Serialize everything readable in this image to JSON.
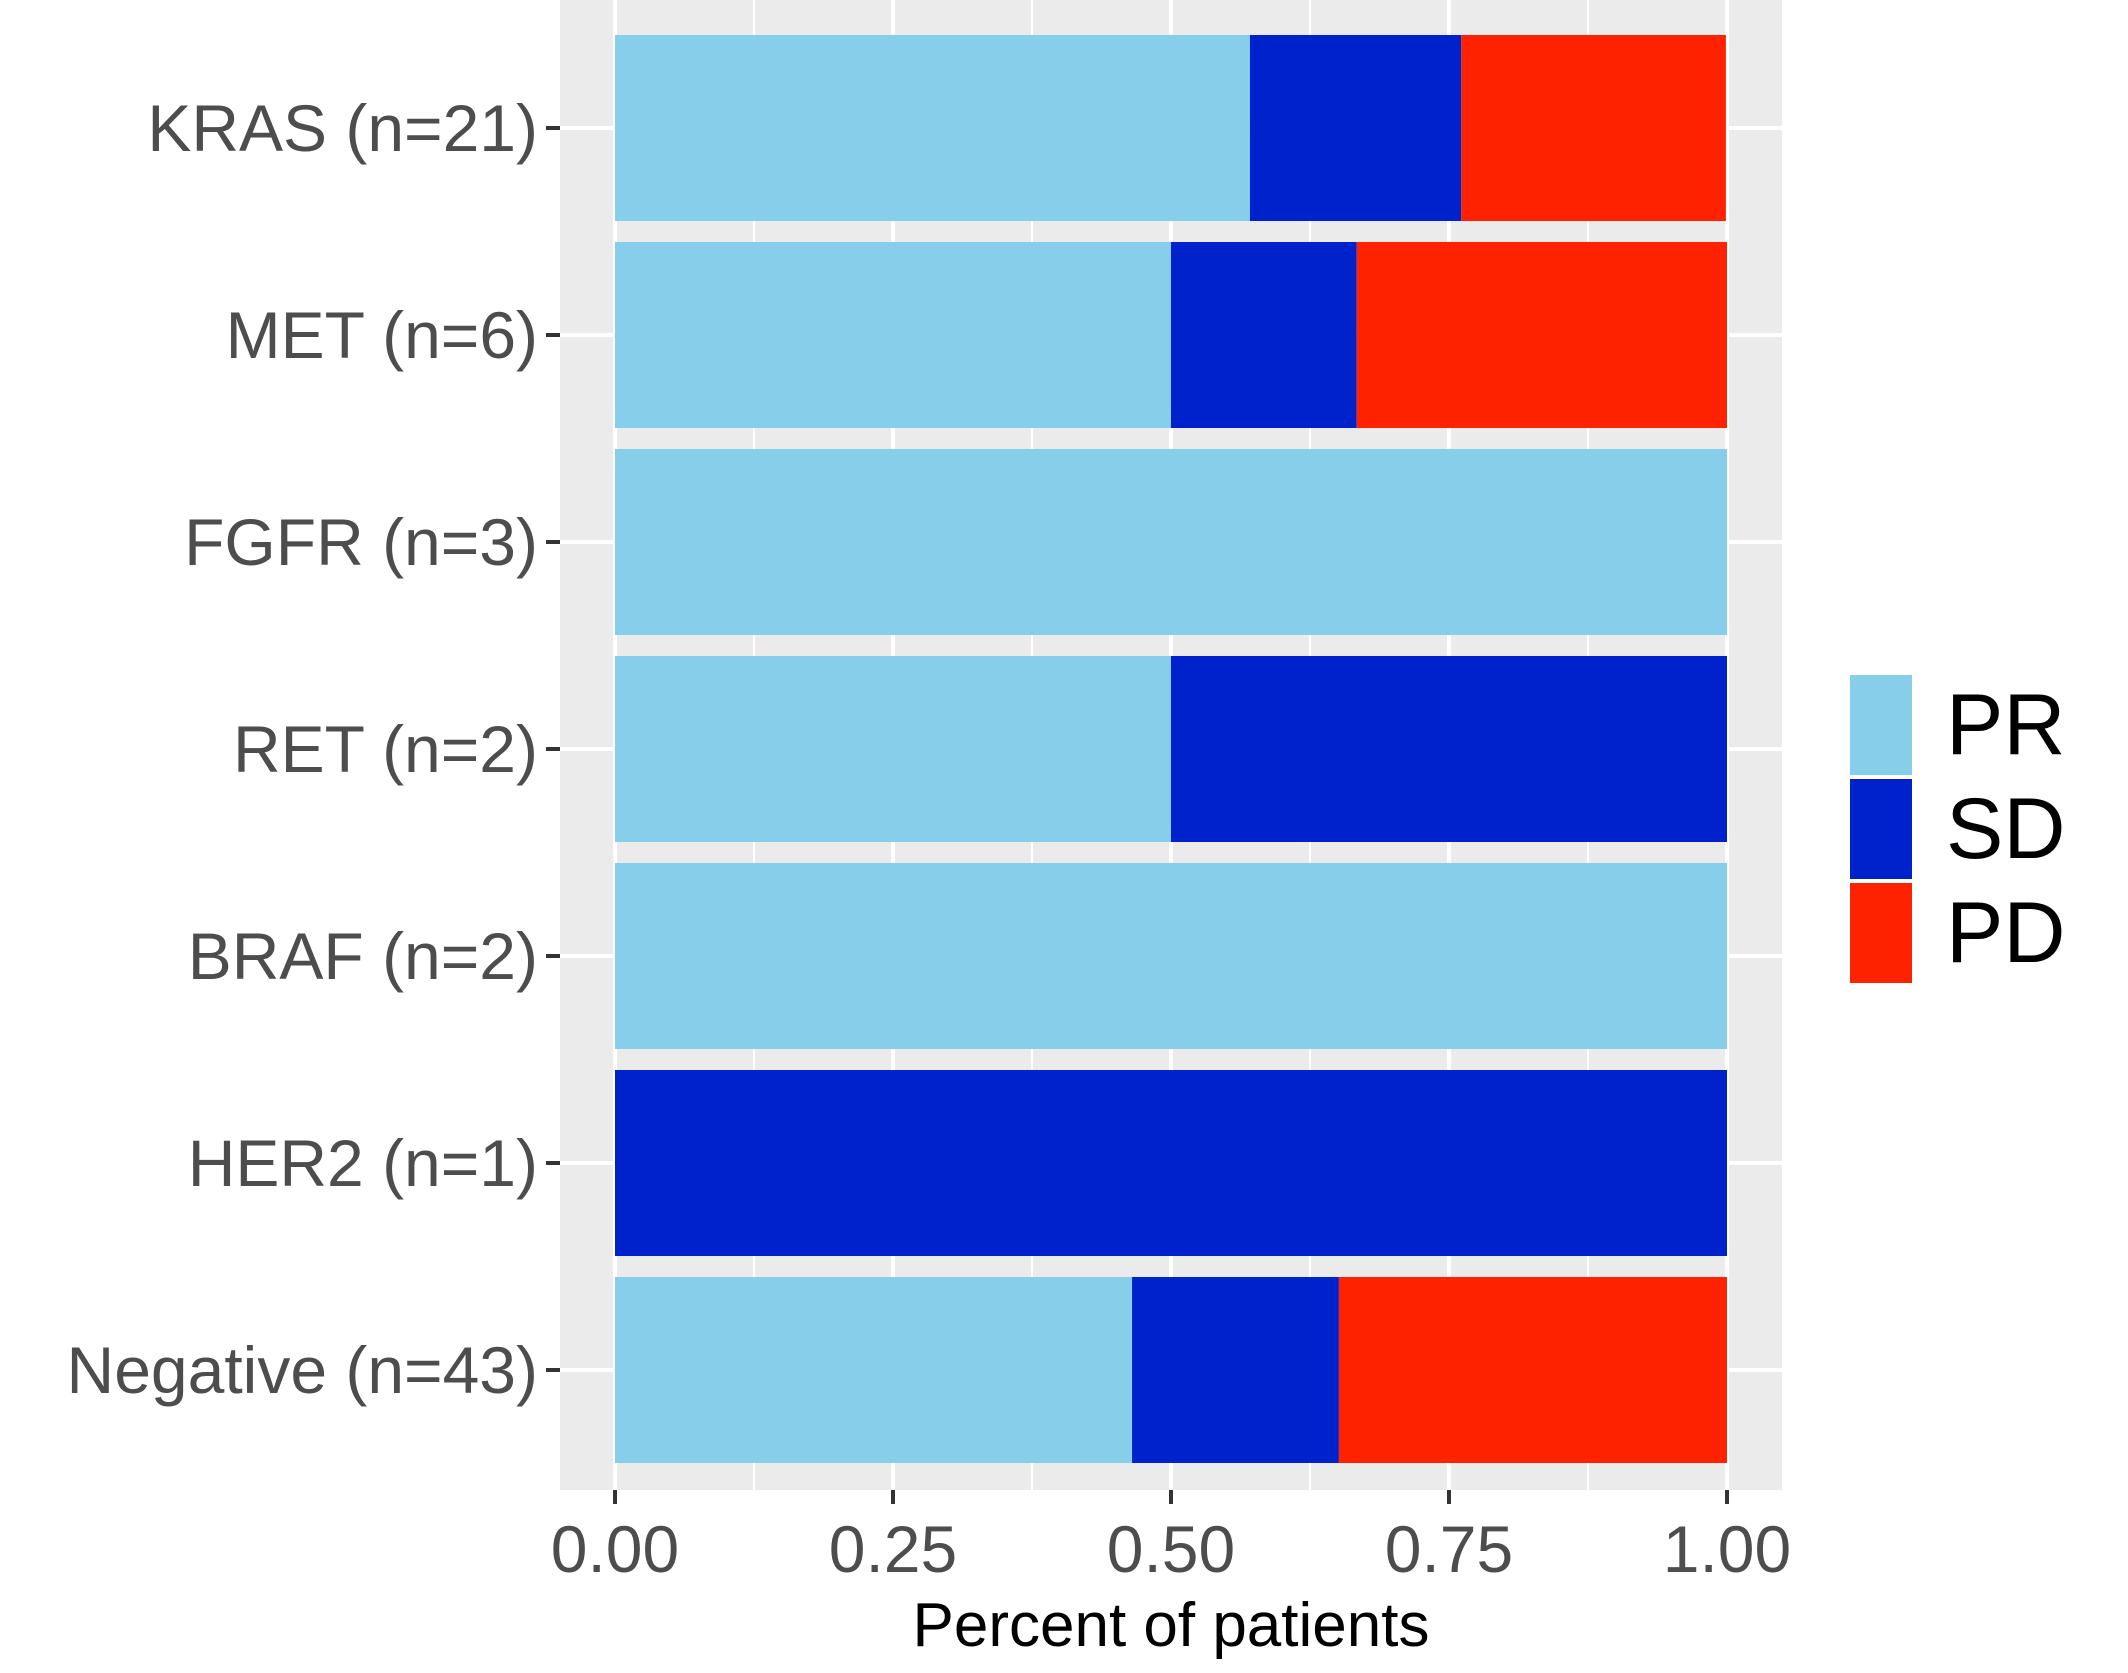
{
  "chart_data": {
    "type": "bar",
    "orientation": "horizontal",
    "stacked": true,
    "categories": [
      "KRAS (n=21)",
      "MET (n=6)",
      "FGFR (n=3)",
      "RET (n=2)",
      "BRAF (n=2)",
      "HER2 (n=1)",
      "Negative (n=43)"
    ],
    "series": [
      {
        "name": "PR",
        "color": "#87ceeb",
        "values": [
          0.571,
          0.5,
          1.0,
          0.5,
          1.0,
          0.0,
          0.465
        ]
      },
      {
        "name": "SD",
        "color": "#0022cc",
        "values": [
          0.19,
          0.167,
          0.0,
          0.5,
          0.0,
          1.0,
          0.186
        ]
      },
      {
        "name": "PD",
        "color": "#ff2200",
        "values": [
          0.238,
          0.333,
          0.0,
          0.0,
          0.0,
          0.0,
          0.349
        ]
      }
    ],
    "xlabel": "Percent of patients",
    "ylabel": "",
    "xlim": [
      0,
      1
    ],
    "xticks": [
      0,
      0.25,
      0.5,
      0.75,
      1
    ],
    "xtick_labels": [
      "0.00",
      "0.25",
      "0.50",
      "0.75",
      "1.00"
    ],
    "grid": true,
    "panel_background": "#ebebeb",
    "legend_position": "right"
  }
}
